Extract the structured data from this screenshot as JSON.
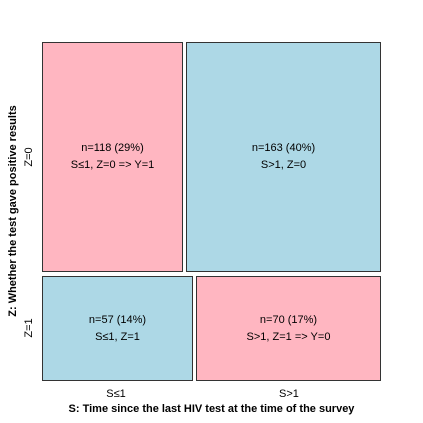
{
  "colors": {
    "pink": "#ffb6c1",
    "blue": "#add8e6",
    "border": "#333333"
  },
  "axes": {
    "x_label": "S: Time since the last HIV test at the time of the survey",
    "x_ticks": [
      "S≤1",
      "S>1"
    ],
    "y_label": "Z: Whether the test gave positive results",
    "y_ticks": [
      "Z=0",
      "Z=1"
    ]
  },
  "cells": [
    {
      "count_text": "n=118 (29%)",
      "rule_text": "S≤1, Z=0 => Y=1",
      "fill": "pink",
      "n": 118,
      "pct": 29
    },
    {
      "count_text": "n=163 (40%)",
      "rule_text": "S>1, Z=0",
      "fill": "blue",
      "n": 163,
      "pct": 40
    },
    {
      "count_text": "n=57 (14%)",
      "rule_text": "S≤1, Z=1",
      "fill": "blue",
      "n": 57,
      "pct": 14
    },
    {
      "count_text": "n=70 (17%)",
      "rule_text": "S>1, Z=1 => Y=0",
      "fill": "pink",
      "n": 70,
      "pct": 17
    }
  ]
}
